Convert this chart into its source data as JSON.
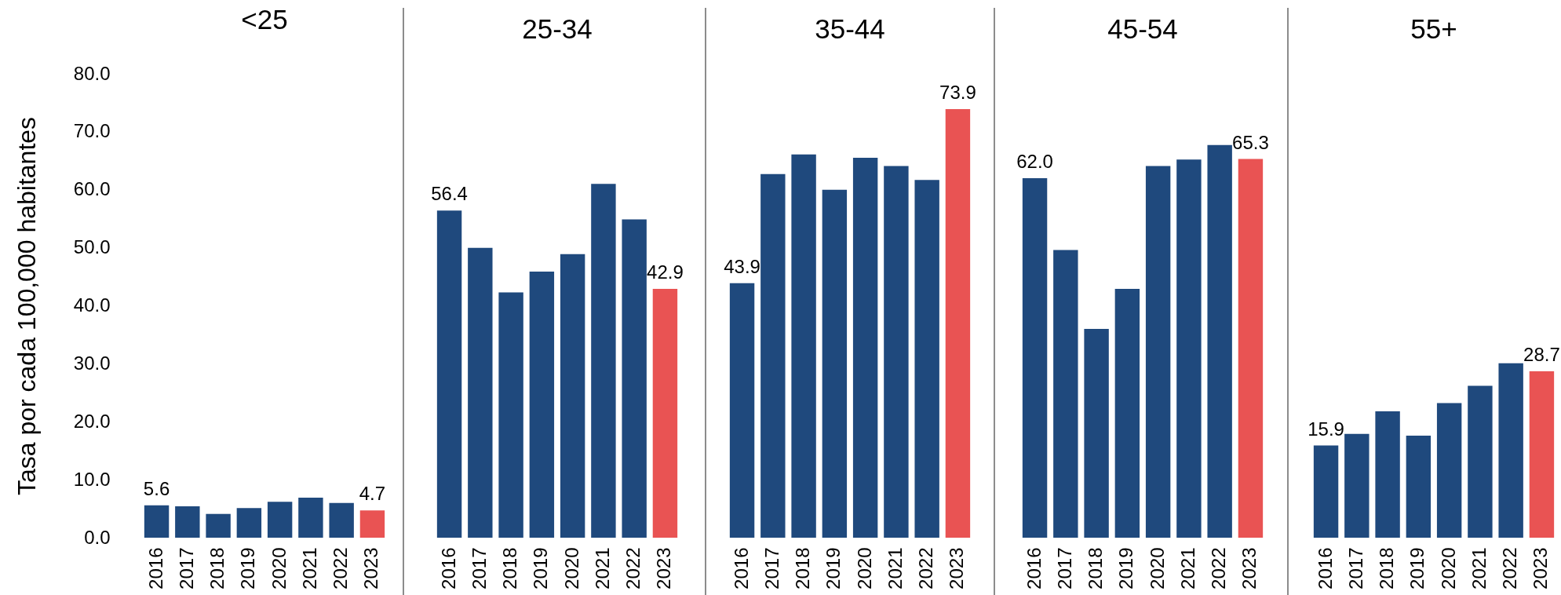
{
  "chart_data": [
    {
      "type": "bar",
      "title": "<25",
      "ylabel": "Tasa por cada 100,000 habitantes",
      "categories": [
        "2016",
        "2017",
        "2018",
        "2019",
        "2020",
        "2021",
        "2022",
        "2023"
      ],
      "values": [
        5.6,
        5.4,
        4.1,
        5.1,
        6.2,
        6.9,
        6.0,
        4.7
      ],
      "colors": [
        "#1f497d",
        "#1f497d",
        "#1f497d",
        "#1f497d",
        "#1f497d",
        "#1f497d",
        "#1f497d",
        "#e95353"
      ],
      "value_labels": [
        "5.6",
        null,
        null,
        null,
        null,
        null,
        null,
        "4.7"
      ],
      "ylim": [
        0,
        80
      ],
      "yticks": [
        {
          "value": 0,
          "label": "0.0"
        },
        {
          "value": 10,
          "label": "10.0"
        },
        {
          "value": 20,
          "label": "20.0"
        },
        {
          "value": 30,
          "label": "30.0"
        },
        {
          "value": 40,
          "label": "40.0"
        },
        {
          "value": 50,
          "label": "50.0"
        },
        {
          "value": 60,
          "label": "60.0"
        },
        {
          "value": 70,
          "label": "70.0"
        },
        {
          "value": 80,
          "label": "80.0"
        }
      ]
    },
    {
      "type": "bar",
      "title": "25-34",
      "categories": [
        "2016",
        "2017",
        "2018",
        "2019",
        "2020",
        "2021",
        "2022",
        "2023"
      ],
      "values": [
        56.4,
        50.0,
        42.3,
        45.9,
        48.9,
        61.0,
        54.9,
        42.9
      ],
      "colors": [
        "#1f497d",
        "#1f497d",
        "#1f497d",
        "#1f497d",
        "#1f497d",
        "#1f497d",
        "#1f497d",
        "#e95353"
      ],
      "value_labels": [
        "56.4",
        null,
        null,
        null,
        null,
        null,
        null,
        "42.9"
      ],
      "ylim": [
        0,
        80
      ],
      "tick_labels": "x"
    },
    {
      "type": "bar",
      "title": "35-44",
      "categories": [
        "2016",
        "2017",
        "2018",
        "2019",
        "2020",
        "2021",
        "2022",
        "2023"
      ],
      "values": [
        43.9,
        62.7,
        66.1,
        60.0,
        65.5,
        64.1,
        61.7,
        73.9
      ],
      "colors": [
        "#1f497d",
        "#1f497d",
        "#1f497d",
        "#1f497d",
        "#1f497d",
        "#1f497d",
        "#1f497d",
        "#e95353"
      ],
      "value_labels": [
        "43.9",
        null,
        null,
        null,
        null,
        null,
        null,
        "73.9"
      ],
      "ylim": [
        0,
        80
      ],
      "tick_labels": "x"
    },
    {
      "type": "bar",
      "title": "45-54",
      "categories": [
        "2016",
        "2017",
        "2018",
        "2019",
        "2020",
        "2021",
        "2022",
        "2023"
      ],
      "values": [
        62.0,
        49.6,
        36.0,
        42.9,
        64.1,
        65.2,
        67.7,
        65.3
      ],
      "colors": [
        "#1f497d",
        "#1f497d",
        "#1f497d",
        "#1f497d",
        "#1f497d",
        "#1f497d",
        "#1f497d",
        "#e95353"
      ],
      "value_labels": [
        "62.0",
        null,
        null,
        null,
        null,
        null,
        null,
        "65.3"
      ],
      "ylim": [
        0,
        80
      ],
      "tick_labels": "x"
    },
    {
      "type": "bar",
      "title": "55+",
      "categories": [
        "2016",
        "2017",
        "2018",
        "2019",
        "2020",
        "2021",
        "2022",
        "2023"
      ],
      "values": [
        15.9,
        17.9,
        21.8,
        17.6,
        23.2,
        26.2,
        30.1,
        28.7
      ],
      "colors": [
        "#1f497d",
        "#1f497d",
        "#1f497d",
        "#1f497d",
        "#1f497d",
        "#1f497d",
        "#1f497d",
        "#e95353"
      ],
      "value_labels": [
        "15.9",
        null,
        null,
        null,
        null,
        null,
        null,
        "28.7"
      ],
      "ylim": [
        0,
        80
      ],
      "tick_labels": "x"
    }
  ]
}
